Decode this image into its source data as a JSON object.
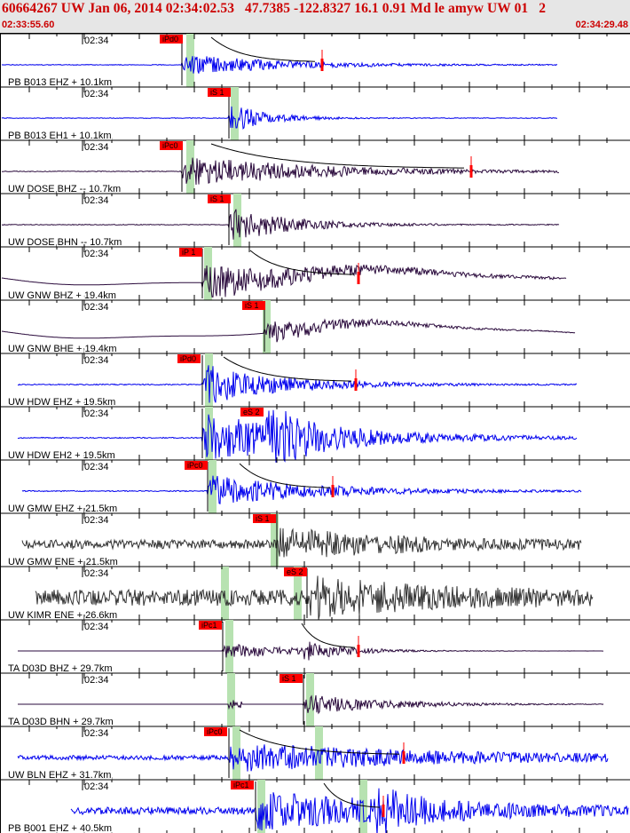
{
  "header": {
    "title": "60664267 UW Jan 06, 2014 02:34:02.53   47.7385 -122.8327 16.1 0.91 Md le amyw UW 01   2",
    "start_time": "02:33:55.60",
    "end_time": "02:34:29.48"
  },
  "colors": {
    "header_bg": "#e6e6e6",
    "header_text": "#cc0000",
    "pick_box": "#ff0000",
    "trace_blue": "#0000ee",
    "trace_dark": "#2a0a3c",
    "trace_gray": "#333333",
    "window_band": "#b7e2b1",
    "coda": "#000000",
    "amp_marker": "#ff0000"
  },
  "traces": [
    {
      "label": "PB B013 EHZ + 10.1km",
      "time_label": "02:34",
      "pick": "iPd0",
      "color": "blue",
      "flat": true
    },
    {
      "label": "PB B013 EH1 + 10.1km",
      "time_label": "02:34",
      "pick": "iS 1",
      "color": "blue",
      "flat": true
    },
    {
      "label": "UW DOSE BHZ -- 10.7km",
      "time_label": "02:34",
      "pick": "iPc0",
      "color": "dark",
      "flat": true
    },
    {
      "label": "UW DOSE BHN -- 10.7km",
      "time_label": "02:34",
      "pick": "iS 1",
      "color": "dark",
      "flat": true
    },
    {
      "label": "UW GNW BHZ + 19.4km",
      "time_label": "02:34",
      "pick": "iP 1",
      "color": "dark",
      "flat": false
    },
    {
      "label": "UW GNW BHE + 19.4km",
      "time_label": "02:34",
      "pick": "iS 1",
      "color": "dark",
      "flat": false
    },
    {
      "label": "UW HDW EHZ + 19.5km",
      "time_label": "02:34",
      "pick": "iPd0",
      "color": "blue",
      "flat": true
    },
    {
      "label": "UW HDW EH2 + 19.5km",
      "time_label": "02:34",
      "pick": "eS 2",
      "color": "blue",
      "flat": true
    },
    {
      "label": "UW GMW EHZ + 21.5km",
      "time_label": "02:34",
      "pick": "iPc0",
      "color": "blue",
      "flat": true
    },
    {
      "label": "UW GMW ENE + 21.5km",
      "time_label": "02:34",
      "pick": "iS 1",
      "color": "gray",
      "flat": true
    },
    {
      "label": "UW KIMR ENE + 26.6km",
      "time_label": "02:34",
      "pick": "eS 2",
      "color": "gray",
      "flat": true
    },
    {
      "label": "TA D03D BHZ + 29.7km",
      "time_label": "02:34",
      "pick": "iPc1",
      "color": "dark",
      "flat": true
    },
    {
      "label": "TA D03D BHN + 29.7km",
      "time_label": "02:34",
      "pick": "iS 1",
      "color": "dark",
      "flat": true
    },
    {
      "label": "UW BLN EHZ + 31.7km",
      "time_label": "02:34",
      "pick": "iPc0",
      "color": "blue",
      "flat": true
    },
    {
      "label": "PB B001 EHZ + 40.5km",
      "time_label": "02:34",
      "pick": "iPc1",
      "color": "blue",
      "flat": true
    }
  ]
}
